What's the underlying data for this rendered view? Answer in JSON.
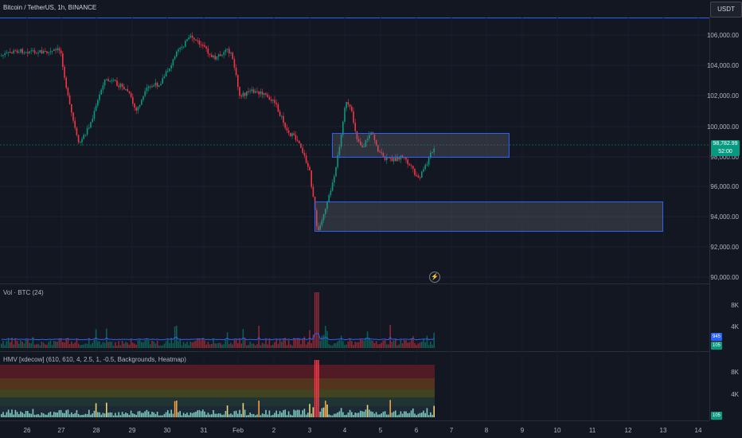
{
  "header": {
    "symbol_text": "Bitcoin / TetherUS, 1h, BINANCE",
    "currency_button": "USDT"
  },
  "main_chart": {
    "price_labels": [
      "106,000.00",
      "104,000.00",
      "102,000.00",
      "100,000.00",
      "98,000.00",
      "96,000.00",
      "94,000.00",
      "92,000.00",
      "90,000.00"
    ],
    "current_price": "98,782.99",
    "countdown": "52:00",
    "zones": [
      {
        "price_low": 98100,
        "price_high": 99650
      },
      {
        "price_low": 93150,
        "price_high": 95050
      }
    ],
    "colors": {
      "up": "#089981",
      "down": "#f23645",
      "zone_border": "#2962ff"
    },
    "bolt_icon": "lightning-icon"
  },
  "volume_panel": {
    "label": "Vol · BTC (24)",
    "axis_labels": [
      "8K",
      "4K"
    ],
    "ma_value": "945",
    "vol_value": "105"
  },
  "hmv_panel": {
    "label": "HMV [xdecow] (610, 610, 4, 2.5, 1, -0.5, Backgrounds, Heatmap)",
    "axis_labels": [
      "8K",
      "4K"
    ],
    "vol_value": "105"
  },
  "time_axis": {
    "labels": [
      "26",
      "27",
      "28",
      "29",
      "30",
      "31",
      "Feb",
      "2",
      "3",
      "4",
      "5",
      "6",
      "7",
      "8",
      "9",
      "10",
      "11",
      "12",
      "13",
      "14"
    ]
  }
}
